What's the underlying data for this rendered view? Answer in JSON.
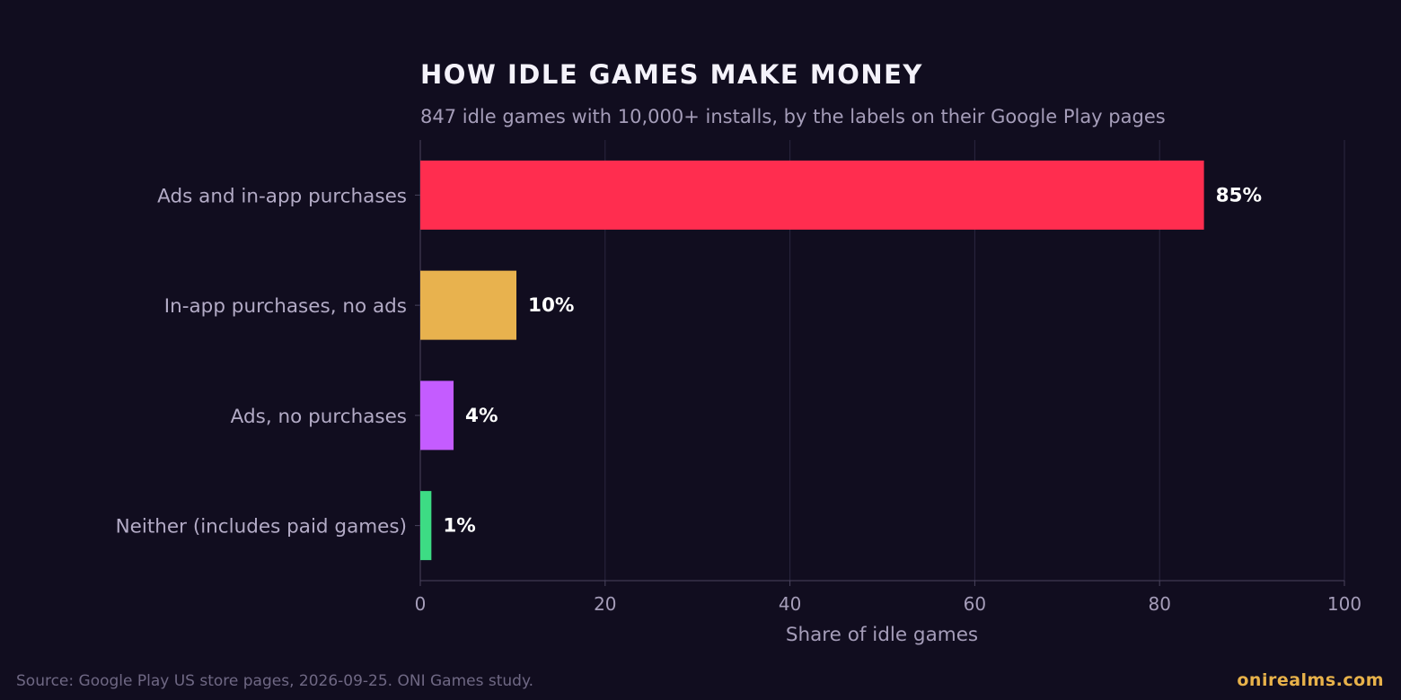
{
  "chart_data": {
    "type": "bar",
    "orientation": "horizontal",
    "title": "HOW IDLE GAMES MAKE MONEY",
    "subtitle": "847 idle games with 10,000+ installs, by the labels on their Google Play pages",
    "categories": [
      "Ads and in-app purchases",
      "In-app purchases, no ads",
      "Ads, no purchases",
      "Neither (includes paid games)"
    ],
    "values": [
      84.8,
      10.4,
      3.6,
      1.2
    ],
    "value_labels": [
      "85%",
      "10%",
      "4%",
      "1%"
    ],
    "colors": [
      "#ff2d4f",
      "#e8b24e",
      "#c45cff",
      "#3ddc84"
    ],
    "xlabel": "Share of idle games",
    "ylabel": "",
    "xlim": [
      0,
      100
    ],
    "xticks": [
      0,
      20,
      40,
      60,
      80,
      100
    ],
    "grid": true,
    "legend": "none"
  },
  "footer": {
    "source": "Source: Google Play US store pages, 2026-09-25. ONI Games study.",
    "brand": "onirealms.com"
  },
  "colors": {
    "background": "#110d1f",
    "grid": "#2b2640",
    "axis": "#4a445e"
  }
}
